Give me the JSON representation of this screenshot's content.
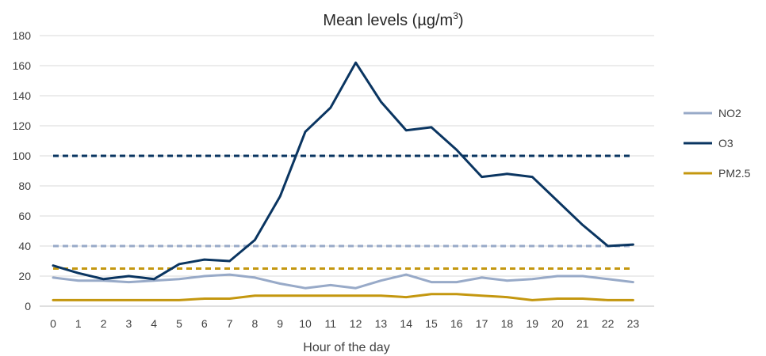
{
  "chart_data": {
    "type": "line",
    "title": "Mean levels (µg/m³)",
    "title_main": "Mean levels (µg/m",
    "title_sup": "3",
    "title_end": ")",
    "xlabel": "Hour of the day",
    "ylabel": "",
    "x": [
      0,
      1,
      2,
      3,
      4,
      5,
      6,
      7,
      8,
      9,
      10,
      11,
      12,
      13,
      14,
      15,
      16,
      17,
      18,
      19,
      20,
      21,
      22,
      23
    ],
    "ylim": [
      0,
      180
    ],
    "yticks": [
      0,
      20,
      40,
      60,
      80,
      100,
      120,
      140,
      160,
      180
    ],
    "grid": true,
    "legend_position": "right",
    "series": [
      {
        "name": "NO2",
        "color": "#98aac8",
        "values": [
          19,
          17,
          17,
          16,
          17,
          18,
          20,
          21,
          19,
          15,
          12,
          14,
          12,
          17,
          21,
          16,
          16,
          19,
          17,
          18,
          20,
          20,
          18,
          16
        ]
      },
      {
        "name": "O3",
        "color": "#0a3561",
        "values": [
          27,
          22,
          18,
          20,
          18,
          28,
          31,
          30,
          44,
          73,
          116,
          132,
          162,
          136,
          117,
          119,
          104,
          86,
          88,
          86,
          70,
          54,
          40,
          41
        ]
      },
      {
        "name": "PM2.5",
        "color": "#c4970f",
        "values": [
          4,
          4,
          4,
          4,
          4,
          4,
          5,
          5,
          7,
          7,
          7,
          7,
          7,
          7,
          6,
          8,
          8,
          7,
          6,
          4,
          5,
          5,
          4,
          4
        ]
      }
    ],
    "reference_lines": [
      {
        "value": 100,
        "color": "#0a3561",
        "style": "dashed"
      },
      {
        "value": 40,
        "color": "#98aac8",
        "style": "dashed"
      },
      {
        "value": 25,
        "color": "#c4970f",
        "style": "dashed"
      }
    ]
  }
}
